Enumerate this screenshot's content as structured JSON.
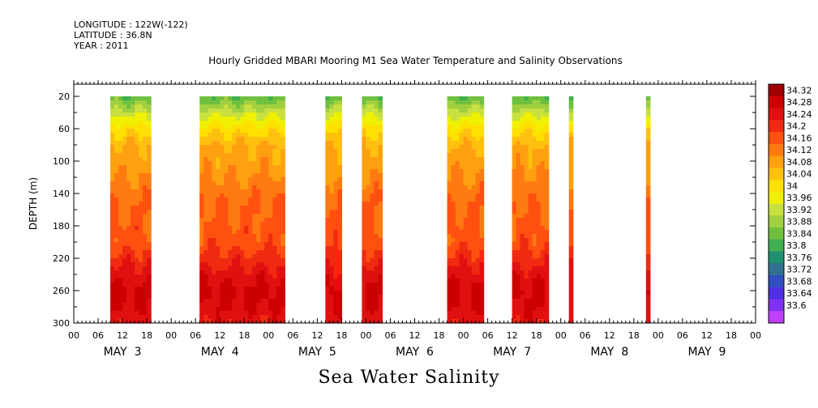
{
  "header": {
    "longitude": "LONGITUDE : 122W(-122)",
    "latitude": "LATITUDE : 36.8N",
    "year": "YEAR : 2011"
  },
  "chart_data": {
    "type": "heatmap",
    "title": "Hourly Gridded MBARI Mooring M1 Sea Water Temperature and Salinity Observations",
    "xlabel": "Sea Water Salinity",
    "ylabel": "DEPTH (m)",
    "y_range": [
      300,
      5
    ],
    "y_ticks": [
      20,
      60,
      100,
      140,
      180,
      220,
      260,
      300
    ],
    "x_range_hours": [
      0,
      168
    ],
    "x_hour_ticks": [
      "00",
      "06",
      "12",
      "18",
      "00",
      "06",
      "12",
      "18",
      "00",
      "06",
      "12",
      "18",
      "00",
      "06",
      "12",
      "18",
      "00",
      "06",
      "12",
      "18",
      "00",
      "06",
      "12",
      "18",
      "00",
      "06",
      "12",
      "18",
      "00"
    ],
    "day_labels": [
      "MAY  3",
      "MAY  4",
      "MAY  5",
      "MAY  6",
      "MAY  7",
      "MAY  8",
      "MAY  9"
    ],
    "data_start": "2011-05-03 00:00",
    "data_segments": [
      {
        "start": "2011-05-03 09:00",
        "end": "2011-05-03 19:00"
      },
      {
        "start": "2011-05-04 07:00",
        "end": "2011-05-05 04:00"
      },
      {
        "start": "2011-05-05 14:00",
        "end": "2011-05-05 18:00"
      },
      {
        "start": "2011-05-05 23:00",
        "end": "2011-05-06 04:00"
      },
      {
        "start": "2011-05-06 20:00",
        "end": "2011-05-07 05:00"
      },
      {
        "start": "2011-05-07 12:00",
        "end": "2011-05-07 21:00"
      },
      {
        "start": "2011-05-08 02:00",
        "end": "2011-05-08 03:00"
      },
      {
        "start": "2011-05-08 21:00",
        "end": "2011-05-08 22:00"
      }
    ],
    "colorbar_levels": [
      "34.32",
      "34.28",
      "34.24",
      "34.2",
      "34.16",
      "34.12",
      "34.08",
      "34.04",
      "34",
      "33.96",
      "33.92",
      "33.88",
      "33.84",
      "33.8",
      "33.76",
      "33.72",
      "33.68",
      "33.64",
      "33.6"
    ],
    "colorbar_colors": [
      "#a00000",
      "#cc0000",
      "#e01010",
      "#f02a10",
      "#ff5010",
      "#ff7a10",
      "#ffa010",
      "#ffc010",
      "#ffe000",
      "#f0f000",
      "#c8e040",
      "#a0d040",
      "#70c040",
      "#40b050",
      "#209070",
      "#307090",
      "#3050c0",
      "#5030e0",
      "#8030f0",
      "#c040ff"
    ],
    "profile_depths": [
      20,
      40,
      60,
      80,
      100,
      120,
      140,
      160,
      180,
      200,
      220,
      240,
      260,
      280,
      300
    ],
    "profile_salinity": [
      33.84,
      33.94,
      34.02,
      34.08,
      34.1,
      34.12,
      34.15,
      34.16,
      34.17,
      34.18,
      34.22,
      34.26,
      34.29,
      34.28,
      34.25
    ]
  }
}
